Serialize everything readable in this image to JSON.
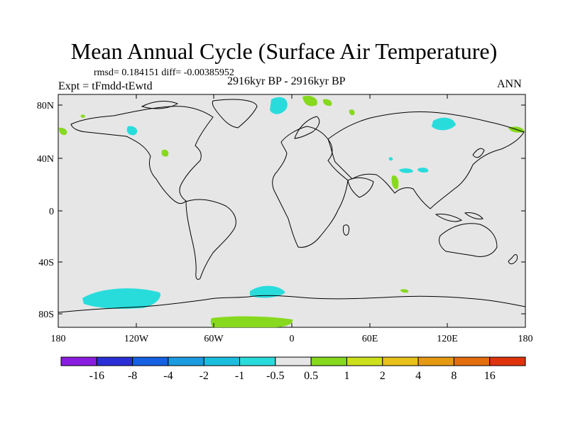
{
  "title": "Mean Annual Cycle (Surface Air Temperature)",
  "stats": "rmsd= 0.184151 diff= -0.00385952",
  "experiment": "Expt = tFmdd-tEwtd",
  "period": "2916kyr BP - 2916kyr BP",
  "season": "ANN",
  "lat_labels": [
    "80N",
    "40N",
    "0",
    "40S",
    "80S"
  ],
  "lon_labels": [
    "180",
    "120W",
    "60W",
    "0",
    "60E",
    "120E",
    "180"
  ],
  "colorbar": {
    "labels": [
      "-16",
      "-8",
      "-4",
      "-2",
      "-1",
      "-0.5",
      "0.5",
      "1",
      "2",
      "4",
      "8",
      "16"
    ],
    "colors": [
      "#8a1de0",
      "#2a2fd6",
      "#1560e3",
      "#1b9be0",
      "#19bede",
      "#29dcdc",
      "#e6e6e6",
      "#86d91d",
      "#cde01c",
      "#e8c21a",
      "#e59a12",
      "#e26e0e",
      "#e0330c"
    ]
  },
  "colors": {
    "land_outline": "#000000",
    "ocean": "#e6e6e6",
    "positive": "#86d91d",
    "negative": "#29dcdc"
  }
}
